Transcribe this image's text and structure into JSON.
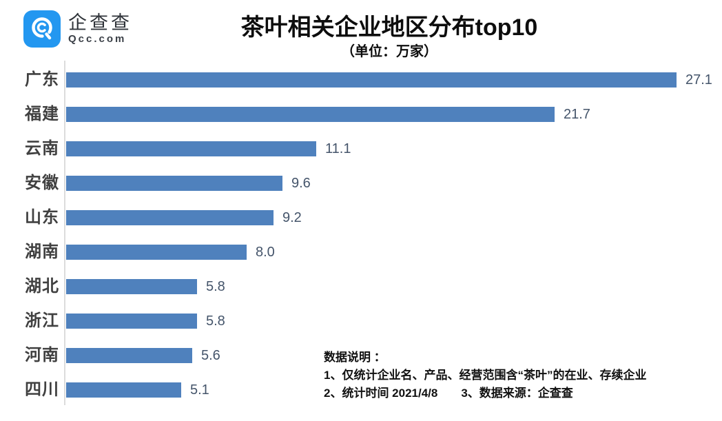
{
  "brand": {
    "logo_text": "企查查",
    "logo_domain": "Qcc.com",
    "logo_blue": "#2397f0"
  },
  "header": {
    "title": "茶叶相关企业地区分布top10",
    "subtitle": "（单位：万家）"
  },
  "chart_data": {
    "type": "bar",
    "orientation": "horizontal",
    "title": "茶叶相关企业地区分布top10",
    "subtitle": "（单位：万家）",
    "unit": "万家",
    "categories": [
      "广东",
      "福建",
      "云南",
      "安徽",
      "山东",
      "湖南",
      "湖北",
      "浙江",
      "河南",
      "四川"
    ],
    "values": [
      27.1,
      21.7,
      11.1,
      9.6,
      9.2,
      8.0,
      5.8,
      5.8,
      5.6,
      5.1
    ],
    "xlim": [
      0,
      29
    ],
    "grid": false,
    "bar_color": "#4f81bd",
    "value_label_color": "#44546a",
    "category_label_color": "#404040",
    "axis_line_color": "#dcdcdc",
    "legend": "none"
  },
  "footnote": {
    "lines": [
      "数据说明 ：",
      "1、仅统计企业名、产品、经营范围含“茶叶”的在业、存续企业",
      "2、统计时间  2021/4/8　　3、数据来源：企查查"
    ]
  }
}
